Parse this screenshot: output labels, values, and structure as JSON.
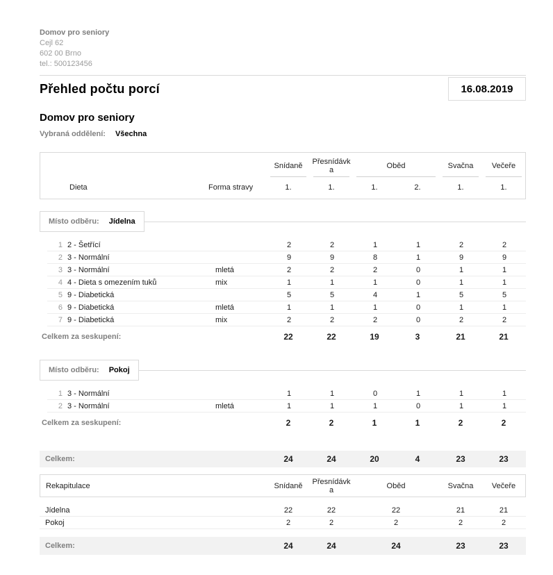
{
  "colors": {
    "muted_label": "#808080",
    "band_background": "#f2f2f2",
    "border": "#d9d9d9"
  },
  "header": {
    "org_name": "Domov pro seniory",
    "address_line1": "Cejl 62",
    "address_line2": "602 00 Brno",
    "phone": "tel.: 500123456",
    "report_title": "Přehled počtu porcí",
    "date": "16.08.2019",
    "section_title": "Domov pro seniory",
    "selected_departments_label": "Vybraná oddělení:",
    "selected_departments_value": "Všechna"
  },
  "table_header": {
    "dieta": "Dieta",
    "forma": "Forma stravy",
    "meals": [
      {
        "label": "Snídaně",
        "cols": [
          "1."
        ]
      },
      {
        "label": "Přesnídávka",
        "cols": [
          "1."
        ]
      },
      {
        "label": "Oběd",
        "cols": [
          "1.",
          "2."
        ]
      },
      {
        "label": "Svačna",
        "cols": [
          "1."
        ]
      },
      {
        "label": "Večeře",
        "cols": [
          "1."
        ]
      }
    ]
  },
  "groups": [
    {
      "place_label": "Místo odběru:",
      "place_value": "Jídelna",
      "rows": [
        {
          "num": "1",
          "dieta": "2 - Šetřící",
          "forma": "",
          "values": [
            "2",
            "2",
            "1",
            "1",
            "2",
            "2"
          ]
        },
        {
          "num": "2",
          "dieta": "3 - Normální",
          "forma": "",
          "values": [
            "9",
            "9",
            "8",
            "1",
            "9",
            "9"
          ]
        },
        {
          "num": "3",
          "dieta": "3 - Normální",
          "forma": "mletá",
          "values": [
            "2",
            "2",
            "2",
            "0",
            "1",
            "1"
          ]
        },
        {
          "num": "4",
          "dieta": "4 - Dieta s omezením tuků",
          "forma": "mix",
          "values": [
            "1",
            "1",
            "1",
            "0",
            "1",
            "1"
          ]
        },
        {
          "num": "5",
          "dieta": "9 - Diabetická",
          "forma": "",
          "values": [
            "5",
            "5",
            "4",
            "1",
            "5",
            "5"
          ]
        },
        {
          "num": "6",
          "dieta": "9 - Diabetická",
          "forma": "mletá",
          "values": [
            "1",
            "1",
            "1",
            "0",
            "1",
            "1"
          ]
        },
        {
          "num": "7",
          "dieta": "9 - Diabetická",
          "forma": "mix",
          "values": [
            "2",
            "2",
            "2",
            "0",
            "2",
            "2"
          ]
        }
      ],
      "subtotal_label": "Celkem za seskupení:",
      "subtotal": [
        "22",
        "22",
        "19",
        "3",
        "21",
        "21"
      ]
    },
    {
      "place_label": "Místo odběru:",
      "place_value": "Pokoj",
      "rows": [
        {
          "num": "1",
          "dieta": "3 - Normální",
          "forma": "",
          "values": [
            "1",
            "1",
            "0",
            "1",
            "1",
            "1"
          ]
        },
        {
          "num": "2",
          "dieta": "3 - Normální",
          "forma": "mletá",
          "values": [
            "1",
            "1",
            "1",
            "0",
            "1",
            "1"
          ]
        }
      ],
      "subtotal_label": "Celkem za seskupení:",
      "subtotal": [
        "2",
        "2",
        "1",
        "1",
        "2",
        "2"
      ]
    }
  ],
  "grand_total": {
    "label": "Celkem:",
    "values": [
      "24",
      "24",
      "20",
      "4",
      "23",
      "23"
    ]
  },
  "recap": {
    "title": "Rekapitulace",
    "columns": [
      "Snídaně",
      "Přesnídávka",
      "Oběd",
      "Svačna",
      "Večeře"
    ],
    "rows": [
      {
        "name": "Jídelna",
        "values": [
          "22",
          "22",
          "22",
          "21",
          "21"
        ]
      },
      {
        "name": "Pokoj",
        "values": [
          "2",
          "2",
          "2",
          "2",
          "2"
        ]
      }
    ],
    "total_label": "Celkem:",
    "total": [
      "24",
      "24",
      "24",
      "23",
      "23"
    ]
  }
}
